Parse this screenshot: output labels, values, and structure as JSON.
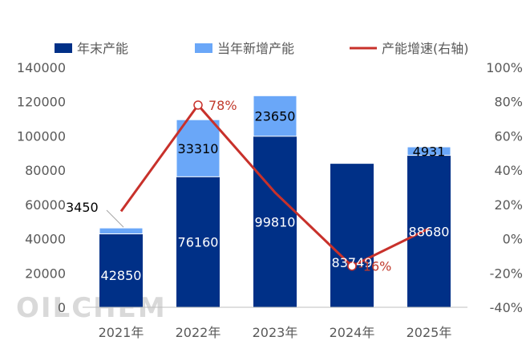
{
  "chart_data": {
    "type": "bar",
    "stacked": true,
    "categories": [
      "2021年",
      "2022年",
      "2023年",
      "2024年",
      "2025年"
    ],
    "series": [
      {
        "name": "年末产能",
        "values": [
          42850,
          76160,
          99810,
          83749,
          88680
        ],
        "color": "#003087",
        "axis": "left"
      },
      {
        "name": "当年新增产能",
        "values": [
          3450,
          33310,
          23650,
          0,
          4931
        ],
        "color": "#6aa7f8",
        "axis": "left"
      },
      {
        "name": "产能增速(右轴)",
        "type": "line",
        "values": [
          16,
          78,
          27,
          -16,
          6
        ],
        "color": "#c8312b",
        "axis": "right"
      }
    ],
    "bar_labels": {
      "total": [
        "42850",
        "76160",
        "99810",
        "83749",
        "88680"
      ],
      "added": [
        "3450",
        "33310",
        "23650",
        "",
        "4931"
      ]
    },
    "growth_labels": [
      "",
      "78%",
      "",
      "-16%",
      ""
    ],
    "ylim_left": [
      0,
      140000
    ],
    "yticks_left": [
      "0",
      "20000",
      "40000",
      "60000",
      "80000",
      "100000",
      "120000",
      "140000"
    ],
    "ylim_right": [
      -40,
      100
    ],
    "yticks_right": [
      "-40%",
      "-20%",
      "0%",
      "20%",
      "40%",
      "60%",
      "80%",
      "100%"
    ],
    "legend_position": "top",
    "grid": false
  },
  "watermark": "OILCHEM"
}
